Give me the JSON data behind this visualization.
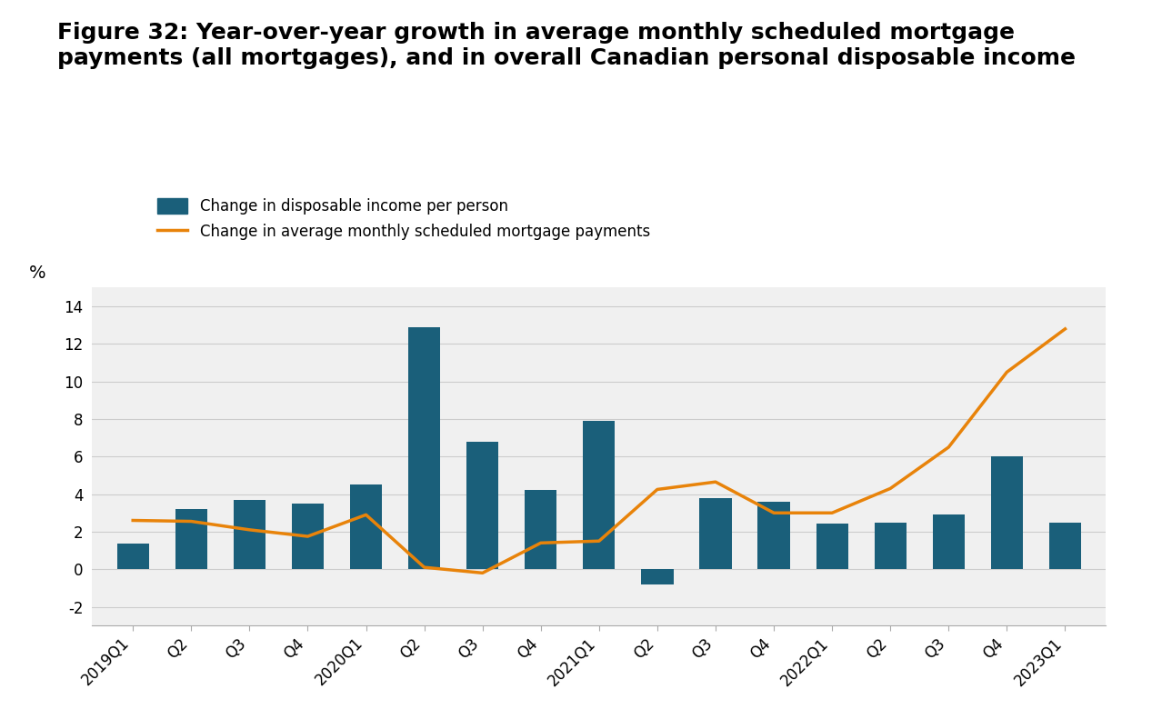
{
  "title": "Figure 32: Year-over-year growth in average monthly scheduled mortgage\npayments (all mortgages), and in overall Canadian personal disposable income",
  "ylabel": "%",
  "categories": [
    "2019Q1",
    "Q2",
    "Q3",
    "Q4",
    "2020Q1",
    "Q2",
    "Q3",
    "Q4",
    "2021Q1",
    "Q2",
    "Q3",
    "Q4",
    "2022Q1",
    "Q2",
    "Q3",
    "Q4",
    "2023Q1"
  ],
  "bar_values": [
    1.35,
    3.2,
    3.7,
    3.5,
    4.5,
    12.9,
    6.8,
    4.2,
    7.9,
    -0.8,
    3.8,
    3.6,
    2.45,
    2.5,
    2.9,
    6.0,
    2.5
  ],
  "line_values": [
    2.6,
    2.55,
    2.1,
    1.75,
    2.9,
    0.1,
    -0.2,
    1.4,
    1.5,
    4.25,
    4.65,
    3.0,
    3.0,
    4.3,
    6.5,
    10.5,
    12.8
  ],
  "bar_color": "#1a5f7a",
  "line_color": "#e8830a",
  "ylim": [
    -3,
    15
  ],
  "yticks": [
    -2,
    0,
    2,
    4,
    6,
    8,
    10,
    12,
    14
  ],
  "legend_bar_label": "Change in disposable income per person",
  "legend_line_label": "Change in average monthly scheduled mortgage payments",
  "plot_bg_color": "#f0f0f0",
  "fig_bg_color": "#ffffff",
  "title_fontsize": 18,
  "axis_fontsize": 12,
  "legend_fontsize": 12,
  "grid_color": "#cccccc",
  "bar_width": 0.55
}
